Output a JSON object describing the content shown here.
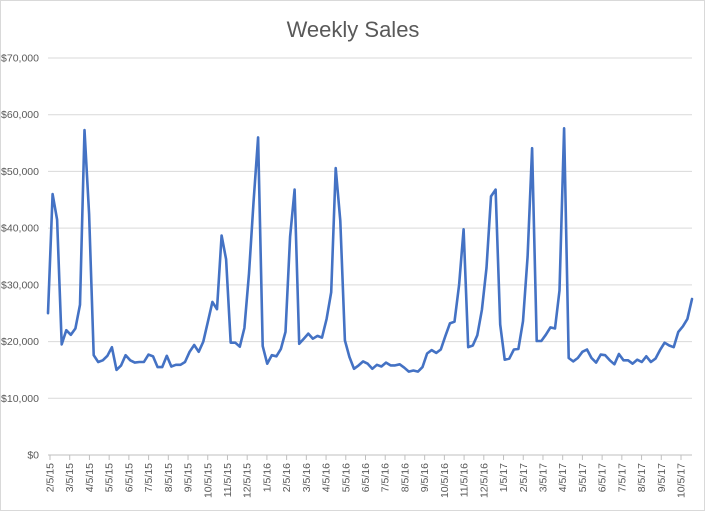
{
  "chart_data": {
    "type": "line",
    "title": "Weekly Sales",
    "xlabel": "",
    "ylabel": "",
    "ylim": [
      0,
      70000
    ],
    "y_ticks": [
      0,
      10000,
      20000,
      30000,
      40000,
      50000,
      60000,
      70000
    ],
    "y_tick_labels": [
      "$0",
      "$10,000",
      "$20,000",
      "$30,000",
      "$40,000",
      "$50,000",
      "$60,000",
      "$70,000"
    ],
    "x_tick_labels": [
      "2/5/15",
      "3/5/15",
      "4/5/15",
      "5/5/15",
      "6/5/15",
      "7/5/15",
      "8/5/15",
      "9/5/15",
      "10/5/15",
      "11/5/15",
      "12/5/15",
      "1/5/16",
      "2/5/16",
      "3/5/16",
      "4/5/16",
      "5/5/16",
      "6/5/16",
      "7/5/16",
      "8/5/16",
      "9/5/16",
      "10/5/16",
      "11/5/16",
      "12/5/16",
      "1/5/17",
      "2/5/17",
      "3/5/17",
      "4/5/17",
      "5/5/17",
      "6/5/17",
      "7/5/17",
      "8/5/17",
      "9/5/17",
      "10/5/17"
    ],
    "grid": true,
    "legend": "none",
    "line_color": "#4472c4",
    "series": [
      {
        "values": [
          25000,
          46000,
          41500,
          19500,
          22000,
          21200,
          22300,
          26500,
          57300,
          42500,
          17600,
          16400,
          16700,
          17500,
          19000,
          15000,
          15800,
          17600,
          16700,
          16300,
          16400,
          16400,
          17700,
          17400,
          15500,
          15500,
          17500,
          15600,
          15900,
          15900,
          16400,
          18200,
          19400,
          18200,
          20000,
          23500,
          27000,
          25700,
          38700,
          34500,
          19800,
          19800,
          19100,
          22400,
          32000,
          44500,
          56000,
          19200,
          16100,
          17600,
          17400,
          18700,
          21700,
          38500,
          46800,
          19600,
          20500,
          21400,
          20500,
          21000,
          20700,
          24000,
          28700,
          50600,
          41300,
          20200,
          17300,
          15200,
          15800,
          16500,
          16100,
          15200,
          15900,
          15600,
          16300,
          15800,
          15800,
          16000,
          15400,
          14700,
          14900,
          14700,
          15500,
          17900,
          18500,
          18000,
          18600,
          21000,
          23200,
          23500,
          30000,
          39800,
          19000,
          19300,
          21100,
          25600,
          33000,
          45600,
          46800,
          23000,
          16800,
          17000,
          18600,
          18700,
          23600,
          35000,
          54100,
          20100,
          20100,
          21200,
          22500,
          22300,
          29000,
          57600,
          17100,
          16500,
          17100,
          18200,
          18600,
          17100,
          16300,
          17700,
          17600,
          16700,
          16000,
          17800,
          16700,
          16700,
          16100,
          16800,
          16400,
          17400,
          16400,
          17000,
          18500,
          19800,
          19300,
          19000,
          21700,
          22700,
          24000,
          27500
        ]
      }
    ]
  }
}
